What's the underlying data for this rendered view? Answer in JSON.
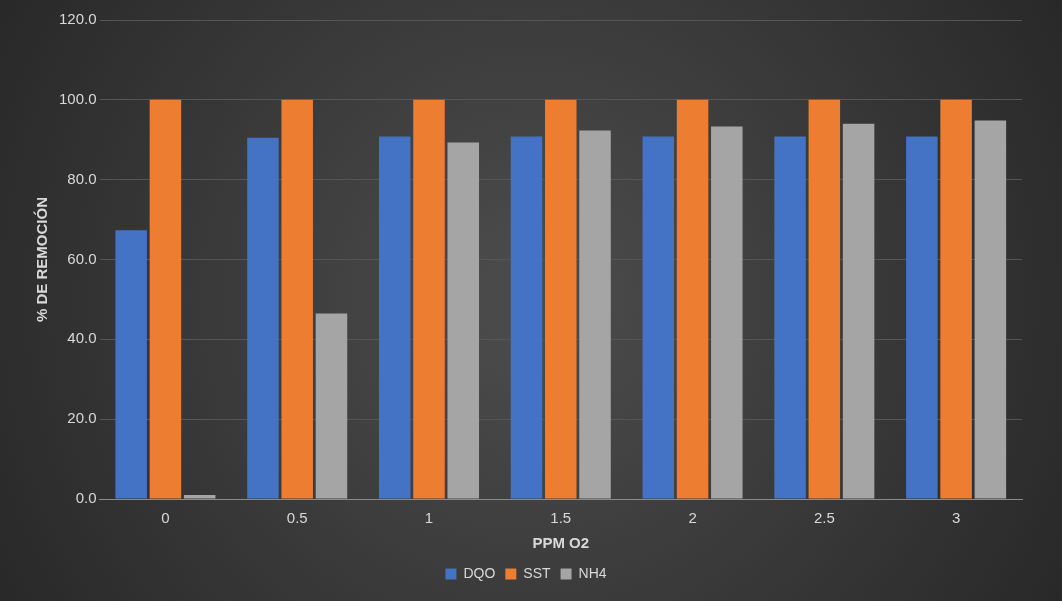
{
  "chart_data": {
    "type": "bar",
    "xlabel": "PPM O2",
    "ylabel": "% DE REMOCIÓN",
    "categories": [
      "0",
      "0.5",
      "1",
      "1.5",
      "2",
      "2.5",
      "3"
    ],
    "series": [
      {
        "name": "DQO",
        "color": "#4472c4",
        "values": [
          67.3,
          90.5,
          90.8,
          90.8,
          90.8,
          90.8,
          90.8
        ]
      },
      {
        "name": "SST",
        "color": "#ed7d31",
        "values": [
          100,
          100,
          100,
          100,
          100,
          100,
          100
        ]
      },
      {
        "name": "NH4",
        "color": "#a5a5a5",
        "values": [
          1,
          46.5,
          89.3,
          92.3,
          93.3,
          94,
          94.8
        ]
      }
    ],
    "ylim": [
      0,
      120
    ],
    "yticks": [
      {
        "value": 0,
        "label": "0.0"
      },
      {
        "value": 20,
        "label": "20.0"
      },
      {
        "value": 40,
        "label": "40.0"
      },
      {
        "value": 60,
        "label": "60.0"
      },
      {
        "value": 80,
        "label": "80.0"
      },
      {
        "value": 100,
        "label": "100.0"
      },
      {
        "value": 120,
        "label": "120.0"
      }
    ],
    "grid": "y",
    "legend": "bottom"
  }
}
